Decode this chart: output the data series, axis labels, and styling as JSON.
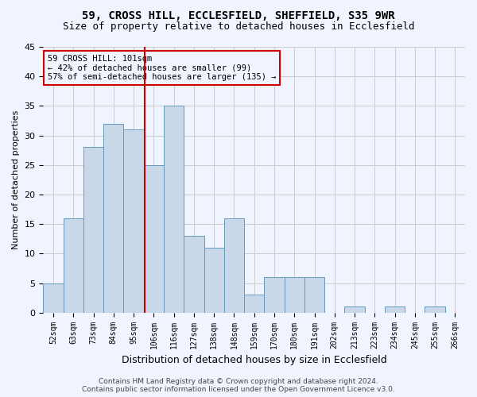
{
  "title_line1": "59, CROSS HILL, ECCLESFIELD, SHEFFIELD, S35 9WR",
  "title_line2": "Size of property relative to detached houses in Ecclesfield",
  "xlabel": "Distribution of detached houses by size in Ecclesfield",
  "ylabel": "Number of detached properties",
  "footer_line1": "Contains HM Land Registry data © Crown copyright and database right 2024.",
  "footer_line2": "Contains public sector information licensed under the Open Government Licence v3.0.",
  "bin_labels": [
    "52sqm",
    "63sqm",
    "73sqm",
    "84sqm",
    "95sqm",
    "106sqm",
    "116sqm",
    "127sqm",
    "138sqm",
    "148sqm",
    "159sqm",
    "170sqm",
    "180sqm",
    "191sqm",
    "202sqm",
    "213sqm",
    "223sqm",
    "234sqm",
    "245sqm",
    "255sqm",
    "266sqm"
  ],
  "bar_values": [
    5,
    16,
    28,
    32,
    31,
    25,
    35,
    13,
    11,
    16,
    3,
    6,
    6,
    6,
    0,
    1,
    0,
    1,
    0,
    1,
    0
  ],
  "bar_color": "#c8d8e8",
  "bar_edge_color": "#6699bb",
  "grid_color": "#cccccc",
  "annotation_box_color": "#cc0000",
  "vline_color": "#cc0000",
  "vline_x": 4.54,
  "annotation_text": "59 CROSS HILL: 101sqm\n← 42% of detached houses are smaller (99)\n57% of semi-detached houses are larger (135) →",
  "ylim": [
    0,
    45
  ],
  "yticks": [
    0,
    5,
    10,
    15,
    20,
    25,
    30,
    35,
    40,
    45
  ],
  "background_color": "#f0f4ff"
}
